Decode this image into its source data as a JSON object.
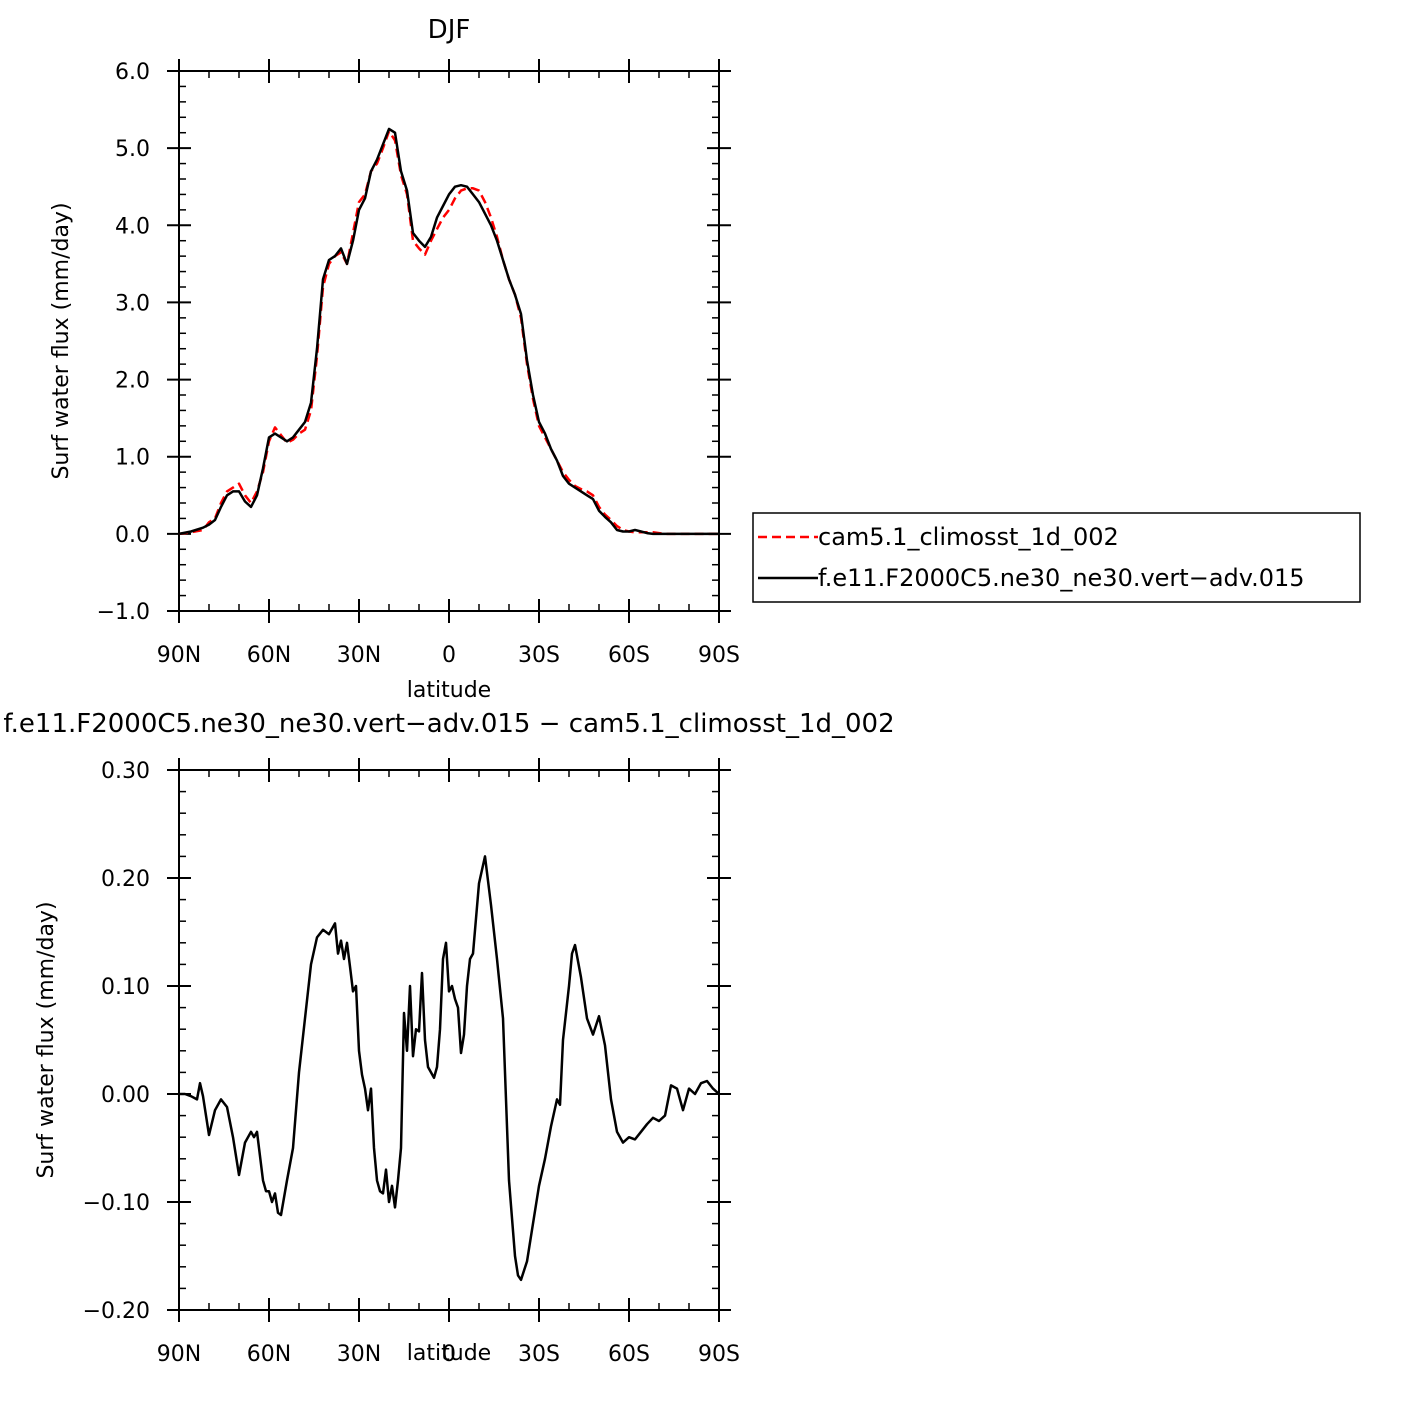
{
  "chart_data": [
    {
      "type": "line",
      "title": "DJF",
      "xlabel": "latitude",
      "ylabel": "Surf water flux (mm/day)",
      "xlim": [
        90,
        -90
      ],
      "ylim": [
        -1.0,
        6.0
      ],
      "x_ticks": [
        90,
        60,
        30,
        0,
        -30,
        -60,
        -90
      ],
      "x_tick_labels": [
        "90N",
        "60N",
        "30N",
        "0",
        "30S",
        "60S",
        "90S"
      ],
      "y_ticks": [
        -1.0,
        0.0,
        1.0,
        2.0,
        3.0,
        4.0,
        5.0,
        6.0
      ],
      "y_tick_labels": [
        "−1.0",
        "0.0",
        "1.0",
        "2.0",
        "3.0",
        "4.0",
        "5.0",
        "6.0"
      ],
      "legend_position": "right",
      "series": [
        {
          "name": "cam5.1_climosst_1d_002",
          "color": "#ff0000",
          "dash": "dashed",
          "x": [
            90,
            86,
            82,
            80,
            78,
            76,
            74,
            72,
            70,
            68,
            66,
            64,
            62,
            60,
            58,
            56,
            54,
            52,
            50,
            48,
            46,
            44,
            42,
            40,
            38,
            36,
            34,
            32,
            30,
            28,
            26,
            24,
            22,
            20,
            18,
            16,
            14,
            12,
            10,
            8,
            6,
            4,
            2,
            0,
            -2,
            -4,
            -6,
            -8,
            -10,
            -12,
            -14,
            -16,
            -18,
            -20,
            -22,
            -24,
            -26,
            -28,
            -30,
            -32,
            -34,
            -36,
            -38,
            -40,
            -42,
            -44,
            -46,
            -48,
            -50,
            -52,
            -54,
            -56,
            -58,
            -60,
            -62,
            -64,
            -66,
            -68,
            -70,
            -72,
            -74,
            -76,
            -78,
            -80,
            -82,
            -84,
            -86,
            -88,
            -90
          ],
          "y": [
            0.0,
            0.02,
            0.05,
            0.15,
            0.2,
            0.4,
            0.55,
            0.6,
            0.65,
            0.5,
            0.4,
            0.55,
            0.8,
            1.2,
            1.38,
            1.28,
            1.18,
            1.22,
            1.3,
            1.35,
            1.6,
            2.3,
            3.2,
            3.5,
            3.6,
            3.65,
            3.5,
            3.9,
            4.3,
            4.4,
            4.7,
            4.8,
            5.0,
            5.22,
            5.1,
            4.65,
            4.4,
            3.8,
            3.7,
            3.62,
            3.8,
            3.95,
            4.1,
            4.2,
            4.35,
            4.45,
            4.48,
            4.48,
            4.45,
            4.3,
            4.1,
            3.85,
            3.55,
            3.3,
            3.1,
            2.8,
            2.2,
            1.75,
            1.4,
            1.25,
            1.1,
            0.95,
            0.8,
            0.7,
            0.62,
            0.58,
            0.55,
            0.5,
            0.35,
            0.25,
            0.18,
            0.1,
            0.05,
            0.03,
            0.02,
            0.02,
            0.02,
            0.02,
            0.01,
            0.0,
            0.0,
            0.0,
            0.0,
            0.0,
            0.0,
            0.0,
            0.0,
            0.0,
            0.0
          ]
        },
        {
          "name": "f.e11.F2000C5.ne30_ne30.vert−adv.015",
          "color": "#000000",
          "dash": "solid",
          "x": [
            90,
            86,
            82,
            80,
            78,
            76,
            74,
            72,
            70,
            68,
            66,
            64,
            62,
            60,
            58,
            56,
            54,
            52,
            50,
            48,
            46,
            44,
            42,
            40,
            38,
            36,
            34,
            32,
            30,
            28,
            26,
            24,
            22,
            20,
            18,
            16,
            14,
            12,
            10,
            8,
            6,
            4,
            2,
            0,
            -2,
            -4,
            -6,
            -8,
            -10,
            -12,
            -14,
            -16,
            -18,
            -20,
            -22,
            -24,
            -26,
            -28,
            -30,
            -32,
            -34,
            -36,
            -38,
            -40,
            -42,
            -44,
            -46,
            -48,
            -50,
            -52,
            -54,
            -56,
            -58,
            -60,
            -62,
            -64,
            -66,
            -68,
            -70,
            -72,
            -74,
            -76,
            -78,
            -80,
            -82,
            -84,
            -86,
            -88,
            -90
          ],
          "y": [
            0.0,
            0.03,
            0.08,
            0.12,
            0.18,
            0.35,
            0.5,
            0.55,
            0.55,
            0.42,
            0.35,
            0.5,
            0.85,
            1.25,
            1.3,
            1.25,
            1.2,
            1.25,
            1.35,
            1.45,
            1.7,
            2.4,
            3.3,
            3.55,
            3.6,
            3.7,
            3.5,
            3.8,
            4.2,
            4.35,
            4.7,
            4.85,
            5.05,
            5.25,
            5.2,
            4.7,
            4.45,
            3.9,
            3.8,
            3.72,
            3.85,
            4.1,
            4.25,
            4.4,
            4.5,
            4.52,
            4.5,
            4.4,
            4.3,
            4.15,
            4.0,
            3.8,
            3.55,
            3.3,
            3.1,
            2.85,
            2.25,
            1.8,
            1.45,
            1.3,
            1.1,
            0.95,
            0.75,
            0.65,
            0.6,
            0.55,
            0.5,
            0.45,
            0.3,
            0.22,
            0.15,
            0.05,
            0.03,
            0.03,
            0.05,
            0.03,
            0.01,
            0.0,
            0.0,
            0.0,
            0.0,
            0.0,
            0.0,
            0.0,
            0.0,
            0.0,
            0.0,
            0.0,
            0.0
          ]
        }
      ]
    },
    {
      "type": "line",
      "title": "f.e11.F2000C5.ne30_ne30.vert−adv.015 − cam5.1_climosst_1d_002",
      "xlabel": "latitude",
      "ylabel": "Surf water flux (mm/day)",
      "xlim": [
        90,
        -90
      ],
      "ylim": [
        -0.2,
        0.3
      ],
      "x_ticks": [
        90,
        60,
        30,
        0,
        -30,
        -60,
        -90
      ],
      "x_tick_labels": [
        "90N",
        "60N",
        "30N",
        "0",
        "30S",
        "60S",
        "90S"
      ],
      "y_ticks": [
        -0.2,
        -0.1,
        0.0,
        0.1,
        0.2,
        0.3
      ],
      "y_tick_labels": [
        "−0.20",
        "−0.10",
        "0.00",
        "0.10",
        "0.20",
        "0.30"
      ],
      "series": [
        {
          "color": "#000000",
          "dash": "solid",
          "x": [
            90,
            88,
            86,
            84,
            83,
            82,
            80,
            78,
            76,
            74,
            72,
            70,
            68,
            66,
            65,
            64,
            62,
            61,
            60,
            59,
            58,
            57,
            56,
            54,
            52,
            50,
            48,
            46,
            44,
            42,
            40,
            38,
            37,
            36,
            35,
            34,
            33,
            32,
            31,
            30,
            29,
            28,
            27,
            26,
            25,
            24,
            23,
            22,
            21,
            20,
            19,
            18,
            17,
            16,
            15,
            14,
            13,
            12,
            11,
            10,
            9,
            8,
            7,
            6,
            5,
            4,
            3,
            2,
            1,
            0,
            -1,
            -2,
            -3,
            -4,
            -5,
            -6,
            -7,
            -8,
            -10,
            -12,
            -14,
            -16,
            -18,
            -20,
            -22,
            -23,
            -24,
            -26,
            -28,
            -30,
            -32,
            -34,
            -36,
            -37,
            -38,
            -40,
            -41,
            -42,
            -44,
            -46,
            -48,
            -50,
            -52,
            -54,
            -56,
            -58,
            -60,
            -62,
            -64,
            -66,
            -68,
            -70,
            -72,
            -74,
            -76,
            -77,
            -78,
            -80,
            -82,
            -84,
            -86,
            -88,
            -90
          ],
          "y": [
            0.0,
            0.0,
            -0.002,
            -0.005,
            0.01,
            -0.002,
            -0.038,
            -0.015,
            -0.005,
            -0.012,
            -0.04,
            -0.075,
            -0.045,
            -0.035,
            -0.04,
            -0.035,
            -0.08,
            -0.09,
            -0.09,
            -0.1,
            -0.092,
            -0.11,
            -0.112,
            -0.08,
            -0.05,
            0.02,
            0.07,
            0.12,
            0.145,
            0.152,
            0.148,
            0.158,
            0.13,
            0.142,
            0.125,
            0.14,
            0.118,
            0.095,
            0.1,
            0.04,
            0.018,
            0.005,
            -0.015,
            0.005,
            -0.05,
            -0.08,
            -0.09,
            -0.092,
            -0.07,
            -0.1,
            -0.085,
            -0.105,
            -0.08,
            -0.05,
            0.075,
            0.04,
            0.1,
            0.035,
            0.06,
            0.058,
            0.112,
            0.05,
            0.025,
            0.02,
            0.015,
            0.025,
            0.06,
            0.125,
            0.14,
            0.095,
            0.1,
            0.088,
            0.08,
            0.038,
            0.055,
            0.1,
            0.125,
            0.13,
            0.195,
            0.22,
            0.175,
            0.125,
            0.07,
            -0.08,
            -0.15,
            -0.168,
            -0.172,
            -0.155,
            -0.12,
            -0.085,
            -0.06,
            -0.03,
            -0.005,
            -0.01,
            0.05,
            0.1,
            0.13,
            0.138,
            0.108,
            0.07,
            0.055,
            0.072,
            0.045,
            -0.005,
            -0.035,
            -0.045,
            -0.04,
            -0.042,
            -0.035,
            -0.028,
            -0.022,
            -0.025,
            -0.02,
            0.008,
            0.005,
            -0.005,
            -0.015,
            0.005,
            0.0,
            0.01,
            0.012,
            0.005,
            0.0
          ]
        }
      ]
    }
  ]
}
